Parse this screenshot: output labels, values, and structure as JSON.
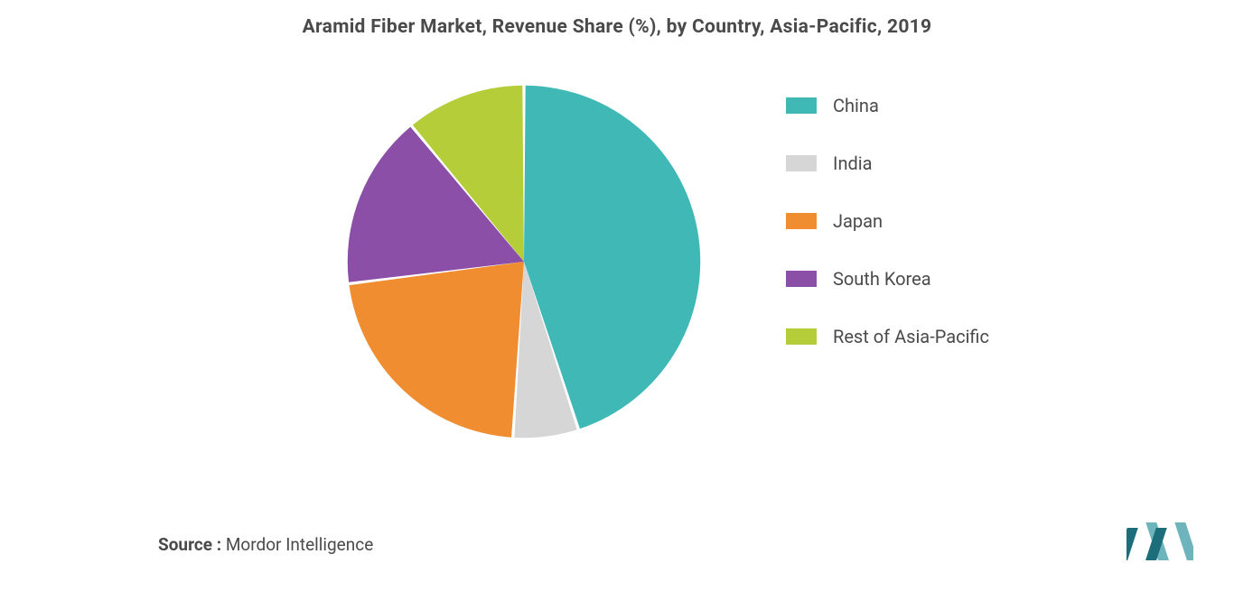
{
  "chart": {
    "type": "pie",
    "title": "Aramid Fiber Market, Revenue Share (%), by Country, Asia-Pacific, 2019",
    "title_fontsize": 21,
    "title_color": "#4a4a4a",
    "background_color": "#ffffff",
    "pie_radius": 205,
    "start_angle_deg": 0,
    "slices": [
      {
        "label": "China",
        "value": 45,
        "color": "#3fb8b6"
      },
      {
        "label": "India",
        "value": 6,
        "color": "#d6d6d6"
      },
      {
        "label": "Japan",
        "value": 22,
        "color": "#ef8d30"
      },
      {
        "label": "South Korea",
        "value": 16,
        "color": "#8b4fa8"
      },
      {
        "label": "Rest of Asia-Pacific",
        "value": 11,
        "color": "#b5cd39"
      }
    ],
    "slice_gap_deg": 1.0,
    "legend": {
      "position": "right",
      "swatch_width": 34,
      "swatch_height": 18,
      "label_fontsize": 20,
      "label_color": "#4a4a4a",
      "item_gap": 40
    }
  },
  "source": {
    "prefix": "Source : ",
    "name": "Mordor Intelligence",
    "fontsize": 19,
    "color": "#4a4a4a"
  },
  "brand": {
    "name": "mordor-logo",
    "bar_color_primary": "#1c6e7a",
    "bar_color_light": "#6db4bd",
    "width": 74,
    "height": 46
  }
}
